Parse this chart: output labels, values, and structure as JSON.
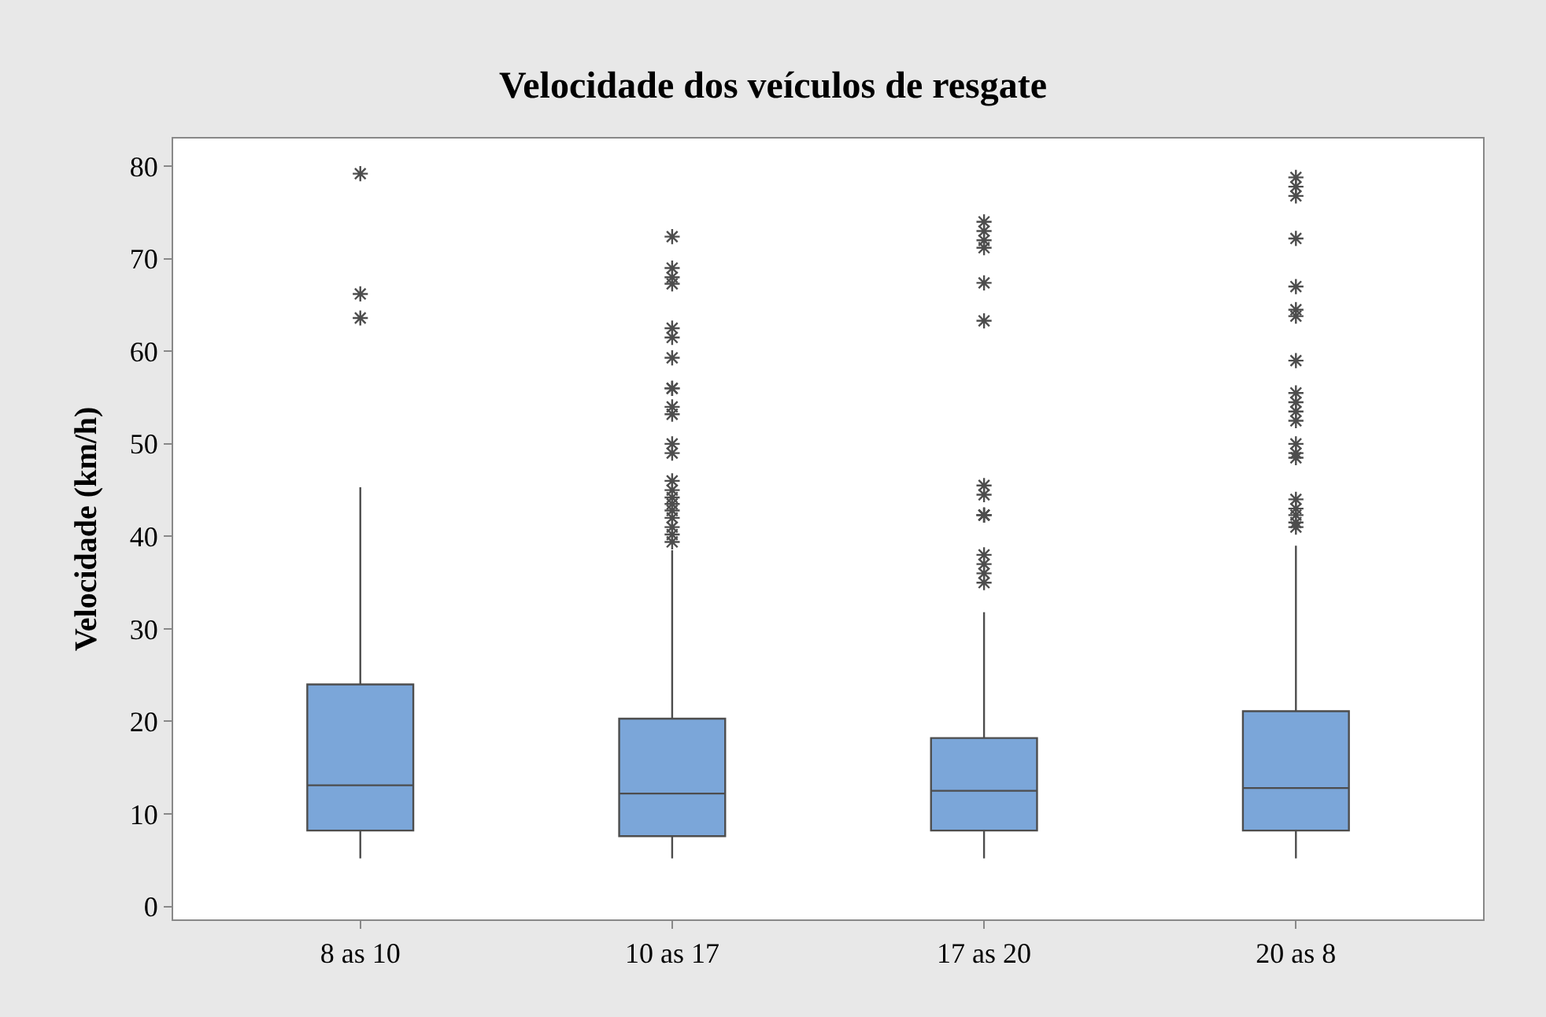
{
  "chart_data": {
    "type": "box",
    "title": "Velocidade dos veículos de resgate",
    "ylabel": "Velocidade (km/h)",
    "categories": [
      "8 as 10",
      "10 as 17",
      "17 as 20",
      "20 as 8"
    ],
    "color": "#7ba6d9",
    "boxes": [
      {
        "low": 5.2,
        "q1": 8.2,
        "median": 13.1,
        "q3": 24.0,
        "high": 45.3,
        "outliers": [
          79.2,
          66.2,
          63.6
        ]
      },
      {
        "low": 5.2,
        "q1": 7.6,
        "median": 12.2,
        "q3": 20.3,
        "high": 38.5,
        "outliers": [
          72.4,
          69.0,
          68.0,
          67.3,
          62.5,
          61.5,
          59.3,
          56.0,
          56.0,
          54.0,
          53.2,
          50.0,
          49.0,
          46.0,
          45.0,
          44.2,
          43.5,
          42.8,
          42.0,
          41.0,
          40.2,
          39.4
        ]
      },
      {
        "low": 5.2,
        "q1": 8.2,
        "median": 12.5,
        "q3": 18.2,
        "high": 31.8,
        "outliers": [
          74.0,
          73.0,
          72.0,
          71.2,
          67.4,
          63.3,
          45.5,
          44.5,
          42.3,
          42.3,
          42.3,
          38.0,
          37.0,
          36.0,
          35.0
        ]
      },
      {
        "low": 5.2,
        "q1": 8.2,
        "median": 12.8,
        "q3": 21.1,
        "high": 39.0,
        "outliers": [
          78.8,
          77.8,
          76.8,
          72.2,
          67.0,
          64.5,
          63.8,
          59.0,
          55.5,
          54.5,
          53.5,
          52.5,
          50.0,
          49.0,
          48.5,
          44.0,
          43.0,
          42.3,
          41.5,
          41.0
        ]
      }
    ],
    "ylim": [
      -1.4,
      83
    ],
    "yticks": [
      0,
      10,
      20,
      30,
      40,
      50,
      60,
      70,
      80
    ]
  }
}
